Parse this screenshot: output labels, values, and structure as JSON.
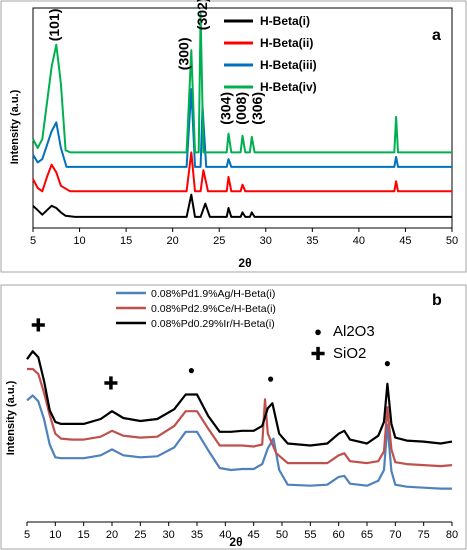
{
  "chart_data": [
    {
      "panel_label": "a",
      "type": "line",
      "xlabel": "2θ",
      "ylabel": "Intensity (a.u.)",
      "xlim": [
        5,
        50
      ],
      "x_ticks": [
        5,
        10,
        15,
        20,
        25,
        30,
        35,
        40,
        45,
        50
      ],
      "y_ticks": "none",
      "grid": false,
      "legend_position": "top-right",
      "series": [
        {
          "name": "H-Beta(i)",
          "color": "#000000",
          "baseline": 1.0,
          "points": [
            [
              5,
              2.0
            ],
            [
              5.5,
              1.6
            ],
            [
              6,
              1.2
            ],
            [
              6.5,
              1.6
            ],
            [
              7,
              2.0
            ],
            [
              7.5,
              1.8
            ],
            [
              8,
              1.4
            ],
            [
              8.5,
              1.1
            ],
            [
              9.5,
              1.0
            ],
            [
              21.5,
              1.0
            ],
            [
              22,
              3.0
            ],
            [
              22.4,
              1.0
            ],
            [
              23,
              1.0
            ],
            [
              23.5,
              2.2
            ],
            [
              24,
              1.0
            ],
            [
              25.8,
              1.0
            ],
            [
              26,
              1.8
            ],
            [
              26.3,
              1.0
            ],
            [
              27.3,
              1.0
            ],
            [
              27.5,
              1.4
            ],
            [
              27.8,
              1.0
            ],
            [
              28.3,
              1.0
            ],
            [
              28.5,
              1.4
            ],
            [
              28.8,
              1.0
            ],
            [
              50,
              1.0
            ]
          ]
        },
        {
          "name": "H-Beta(ii)",
          "color": "#ff0000",
          "baseline": 3.3,
          "points": [
            [
              5,
              4.4
            ],
            [
              5.5,
              3.6
            ],
            [
              6,
              3.3
            ],
            [
              6.5,
              4.6
            ],
            [
              7,
              5.7
            ],
            [
              7.5,
              5.0
            ],
            [
              8,
              3.8
            ],
            [
              9,
              3.3
            ],
            [
              21.5,
              3.3
            ],
            [
              22,
              6.8
            ],
            [
              22.4,
              3.3
            ],
            [
              23,
              3.3
            ],
            [
              23.3,
              5.2
            ],
            [
              23.8,
              3.3
            ],
            [
              25.8,
              3.3
            ],
            [
              26,
              4.6
            ],
            [
              26.3,
              3.3
            ],
            [
              27.3,
              3.3
            ],
            [
              27.5,
              3.9
            ],
            [
              27.8,
              3.3
            ],
            [
              43.8,
              3.3
            ],
            [
              44,
              4.2
            ],
            [
              44.2,
              3.3
            ],
            [
              50,
              3.3
            ]
          ]
        },
        {
          "name": "H-Beta(iii)",
          "color": "#0070c0",
          "baseline": 5.5,
          "points": [
            [
              5,
              6.6
            ],
            [
              5.5,
              5.9
            ],
            [
              6,
              6.2
            ],
            [
              7,
              8.7
            ],
            [
              7.5,
              9.5
            ],
            [
              8,
              7.2
            ],
            [
              8.6,
              5.5
            ],
            [
              21.5,
              5.5
            ],
            [
              22,
              12.5
            ],
            [
              22.4,
              5.5
            ],
            [
              23,
              5.5
            ],
            [
              23.2,
              11.0
            ],
            [
              23.6,
              5.5
            ],
            [
              25.8,
              5.5
            ],
            [
              26,
              6.2
            ],
            [
              26.3,
              5.5
            ],
            [
              43.8,
              5.5
            ],
            [
              44,
              6.4
            ],
            [
              44.2,
              5.5
            ],
            [
              50,
              5.5
            ]
          ]
        },
        {
          "name": "H-Beta(iv)",
          "color": "#00b050",
          "baseline": 6.8,
          "points": [
            [
              5,
              8.0
            ],
            [
              5.5,
              7.2
            ],
            [
              6,
              8.0
            ],
            [
              7,
              14.5
            ],
            [
              7.5,
              16.5
            ],
            [
              8,
              13.0
            ],
            [
              8.5,
              7.0
            ],
            [
              9,
              6.8
            ],
            [
              21.5,
              6.8
            ],
            [
              22,
              16.0
            ],
            [
              22.4,
              6.8
            ],
            [
              22.8,
              6.8
            ],
            [
              23,
              19.3
            ],
            [
              23.3,
              6.8
            ],
            [
              25.8,
              6.8
            ],
            [
              26,
              8.5
            ],
            [
              26.3,
              6.8
            ],
            [
              27.3,
              6.8
            ],
            [
              27.5,
              8.3
            ],
            [
              27.8,
              6.8
            ],
            [
              28.3,
              6.8
            ],
            [
              28.5,
              8.2
            ],
            [
              28.8,
              6.8
            ],
            [
              43.8,
              6.8
            ],
            [
              44,
              10.0
            ],
            [
              44.2,
              6.8
            ],
            [
              50,
              6.8
            ]
          ]
        }
      ],
      "annotations": [
        {
          "text": "(101)",
          "x": 7.8,
          "y": 16.8
        },
        {
          "text": "(300)",
          "x": 21.7,
          "y": 14.2
        },
        {
          "text": "(302)",
          "x": 23.7,
          "y": 17.8
        },
        {
          "text": "(304)",
          "x": 26.2,
          "y": 9.3
        },
        {
          "text": "(008)",
          "x": 27.9,
          "y": 9.3
        },
        {
          "text": "(306)",
          "x": 29.6,
          "y": 9.3
        }
      ]
    },
    {
      "panel_label": "b",
      "type": "line",
      "xlabel": "2θ",
      "ylabel": "Intensity (a.u.)",
      "xlim": [
        5,
        80
      ],
      "x_ticks": [
        5,
        10,
        15,
        20,
        25,
        30,
        35,
        40,
        45,
        50,
        55,
        60,
        65,
        70,
        75,
        80
      ],
      "y_ticks": "none",
      "grid": false,
      "legend_position": "top-left",
      "series": [
        {
          "name": "0.08%Pd1.9%Ag/H-Beta(i)",
          "color": "#4f81bd",
          "points": [
            [
              5,
              12.4
            ],
            [
              6,
              12.9
            ],
            [
              7,
              12.3
            ],
            [
              8,
              10.5
            ],
            [
              9,
              7.9
            ],
            [
              10,
              6.6
            ],
            [
              11,
              6.5
            ],
            [
              13,
              6.5
            ],
            [
              15,
              6.5
            ],
            [
              18,
              6.8
            ],
            [
              20,
              7.4
            ],
            [
              22,
              6.8
            ],
            [
              25,
              6.6
            ],
            [
              28,
              6.7
            ],
            [
              31,
              7.6
            ],
            [
              33,
              9.2
            ],
            [
              35,
              9.2
            ],
            [
              37,
              7.3
            ],
            [
              39,
              5.5
            ],
            [
              41,
              5.3
            ],
            [
              43,
              5.4
            ],
            [
              45,
              5.4
            ],
            [
              46.5,
              5.9
            ],
            [
              47.5,
              7.5
            ],
            [
              48.5,
              8.5
            ],
            [
              49.5,
              5.3
            ],
            [
              51,
              3.8
            ],
            [
              55,
              3.7
            ],
            [
              58,
              3.8
            ],
            [
              60,
              4.6
            ],
            [
              61,
              4.7
            ],
            [
              62,
              3.9
            ],
            [
              65,
              3.7
            ],
            [
              67,
              4.2
            ],
            [
              68,
              5.3
            ],
            [
              68.6,
              9.9
            ],
            [
              69.3,
              5.2
            ],
            [
              70,
              3.8
            ],
            [
              72,
              3.6
            ],
            [
              75,
              3.5
            ],
            [
              78,
              3.4
            ],
            [
              80,
              3.4
            ]
          ]
        },
        {
          "name": "0.08%Pd2.9%Ce/H-Beta(i)",
          "color": "#c0504d",
          "points": [
            [
              5,
              15.6
            ],
            [
              6,
              15.6
            ],
            [
              7,
              15.1
            ],
            [
              8,
              13.2
            ],
            [
              9,
              10.9
            ],
            [
              10,
              9.0
            ],
            [
              11,
              8.5
            ],
            [
              13,
              8.4
            ],
            [
              15,
              8.4
            ],
            [
              18,
              8.7
            ],
            [
              20,
              9.3
            ],
            [
              22,
              8.8
            ],
            [
              25,
              8.6
            ],
            [
              28,
              8.7
            ],
            [
              31,
              9.8
            ],
            [
              33,
              11.3
            ],
            [
              35,
              11.3
            ],
            [
              37,
              9.5
            ],
            [
              39,
              7.8
            ],
            [
              41,
              7.8
            ],
            [
              43,
              7.8
            ],
            [
              45,
              7.7
            ],
            [
              46.5,
              7.9
            ],
            [
              47,
              12.5
            ],
            [
              47.5,
              9.0
            ],
            [
              49,
              7.0
            ],
            [
              51,
              6.0
            ],
            [
              55,
              6.0
            ],
            [
              58,
              6.0
            ],
            [
              60,
              6.8
            ],
            [
              61,
              7.0
            ],
            [
              62,
              6.2
            ],
            [
              65,
              6.0
            ],
            [
              67,
              6.2
            ],
            [
              68,
              7.2
            ],
            [
              68.6,
              11.7
            ],
            [
              69.3,
              7.4
            ],
            [
              70,
              6.1
            ],
            [
              72,
              5.9
            ],
            [
              75,
              5.8
            ],
            [
              78,
              5.7
            ],
            [
              80,
              5.8
            ]
          ]
        },
        {
          "name": "0.08%Pd0.29%Ir/H-Beta(i)",
          "color": "#000000",
          "points": [
            [
              5,
              16.6
            ],
            [
              6,
              17.4
            ],
            [
              7,
              16.8
            ],
            [
              8,
              14.4
            ],
            [
              9,
              11.4
            ],
            [
              10,
              10.2
            ],
            [
              11,
              10.0
            ],
            [
              13,
              10.0
            ],
            [
              15,
              10.0
            ],
            [
              18,
              10.5
            ],
            [
              20,
              11.3
            ],
            [
              22,
              10.6
            ],
            [
              25,
              10.3
            ],
            [
              28,
              10.5
            ],
            [
              31,
              11.5
            ],
            [
              33,
              13.0
            ],
            [
              35,
              13.0
            ],
            [
              37,
              10.8
            ],
            [
              39,
              9.2
            ],
            [
              41,
              9.2
            ],
            [
              43,
              9.3
            ],
            [
              45,
              9.3
            ],
            [
              46.5,
              9.8
            ],
            [
              47.5,
              11.6
            ],
            [
              48.3,
              12.1
            ],
            [
              49.5,
              9.0
            ],
            [
              51,
              8.0
            ],
            [
              55,
              7.8
            ],
            [
              58,
              8.0
            ],
            [
              60,
              9.0
            ],
            [
              61,
              9.3
            ],
            [
              62,
              8.4
            ],
            [
              65,
              8.0
            ],
            [
              67,
              8.8
            ],
            [
              68,
              10.2
            ],
            [
              68.6,
              14.1
            ],
            [
              69.3,
              10.0
            ],
            [
              70,
              8.6
            ],
            [
              72,
              8.3
            ],
            [
              75,
              8.2
            ],
            [
              78,
              8.0
            ],
            [
              80,
              8.2
            ]
          ]
        }
      ],
      "markers": [
        {
          "symbol": "✚",
          "label": "SiO2",
          "x": 7.0,
          "y": 19.4
        },
        {
          "symbol": "✚",
          "label": "SiO2",
          "x": 19.8,
          "y": 13.5
        },
        {
          "symbol": "●",
          "label": "Al2O3",
          "x": 34.0,
          "y": 15.1
        },
        {
          "symbol": "●",
          "label": "Al2O3",
          "x": 48.0,
          "y": 14.2
        },
        {
          "symbol": "●",
          "label": "Al2O3",
          "x": 68.6,
          "y": 15.8
        }
      ],
      "marker_legend": [
        {
          "symbol": "●",
          "label": "Al2O3"
        },
        {
          "symbol": "✚",
          "label": "SiO2"
        }
      ]
    }
  ]
}
